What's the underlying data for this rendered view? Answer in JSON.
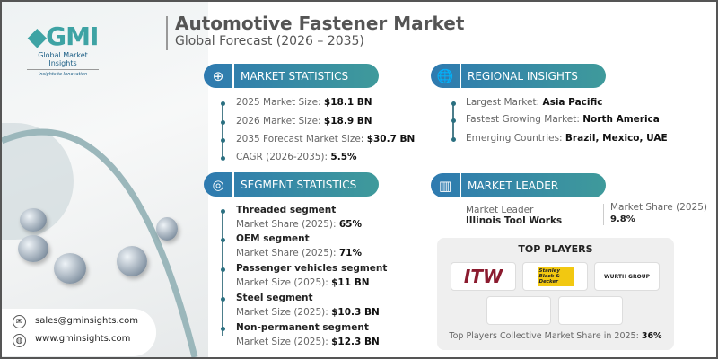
{
  "header": {
    "title": "Automotive Fastener Market",
    "subtitle": "Global Forecast (2026 – 2035)"
  },
  "logo": {
    "mark": "GMI",
    "name": "Global Market Insights",
    "tagline": "Insights to Innovation"
  },
  "market_statistics": {
    "heading": "MARKET STATISTICS",
    "icon": "globe-chart-icon",
    "items": [
      {
        "label": "2025 Market Size: ",
        "value": "$18.1 BN"
      },
      {
        "label": "2026 Market Size: ",
        "value": "$18.9 BN"
      },
      {
        "label": "2035 Forecast Market Size: ",
        "value": "$30.7 BN"
      },
      {
        "label": "CAGR (2026-2035): ",
        "value": "5.5%"
      }
    ]
  },
  "regional_insights": {
    "heading": "REGIONAL INSIGHTS",
    "icon": "globe-icon",
    "items": [
      {
        "label": "Largest Market: ",
        "value": "Asia Pacific"
      },
      {
        "label": "Fastest Growing Market: ",
        "value": "North America"
      },
      {
        "label": "Emerging Countries: ",
        "value": "Brazil, Mexico, UAE"
      }
    ]
  },
  "segment_statistics": {
    "heading": "SEGMENT STATISTICS",
    "icon": "target-chart-icon",
    "items": [
      {
        "name": "Threaded segment",
        "label": "Market Share (2025): ",
        "value": "65%"
      },
      {
        "name": "OEM segment",
        "label": "Market Share (2025): ",
        "value": "71%"
      },
      {
        "name": "Passenger vehicles segment",
        "label": "Market Size (2025): ",
        "value": "$11 BN"
      },
      {
        "name": "Steel segment",
        "label": "Market Size (2025): ",
        "value": "$10.3 BN"
      },
      {
        "name": "Non-permanent segment",
        "label": "Market Size (2025): ",
        "value": "$12.3 BN"
      }
    ]
  },
  "market_leader": {
    "heading": "MARKET LEADER",
    "icon": "bar-chart-icon",
    "leader_label": "Market Leader",
    "leader": "Illinois Tool Works",
    "share_label": "Market Share (2025)",
    "share": "9.8%"
  },
  "top_players": {
    "heading": "TOP PLAYERS",
    "logos": [
      "ITW",
      "Stanley Black & Decker",
      "WURTH GROUP"
    ],
    "footer_label": "Top Players Collective Market Share in 2025: ",
    "footer_value": "36%"
  },
  "contact": {
    "email": "sales@gminsights.com",
    "website": "www.gminsights.com"
  },
  "colors": {
    "accent_blue": "#2e7ab0",
    "accent_teal": "#3f9a9b",
    "itw": "#8b1a2e",
    "stanley": "#f2c811",
    "wurth": "#cc0000"
  }
}
